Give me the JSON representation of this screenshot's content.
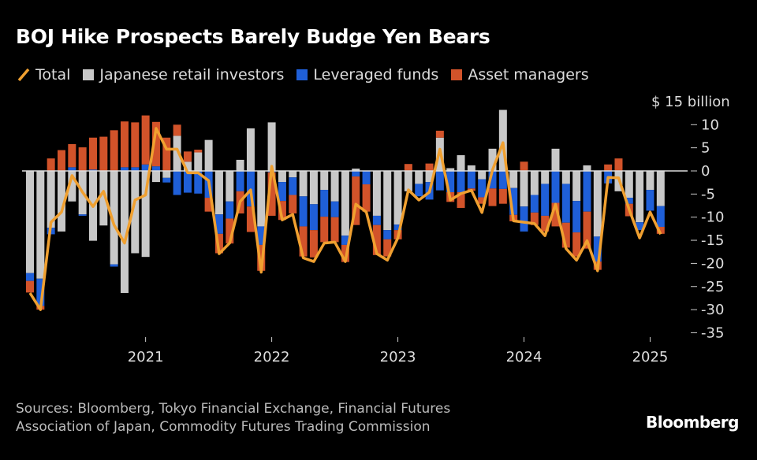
{
  "title": "BOJ Hike Prospects Barely Budge Yen Bears",
  "legend": [
    {
      "label": "Total",
      "color": "#f0a030",
      "icon": "line"
    },
    {
      "label": "Japanese retail investors",
      "color": "#c8c8c8",
      "icon": "square"
    },
    {
      "label": "Leveraged funds",
      "color": "#1f5fd8",
      "icon": "square"
    },
    {
      "label": "Asset managers",
      "color": "#d2532a",
      "icon": "square"
    }
  ],
  "unit_label": "$ 15 billion",
  "footer": {
    "line1": "Sources: Bloomberg, Tokyo Financial Exchange, Financial Futures",
    "line2": "Association of Japan, Commodity Futures Trading Commission"
  },
  "logo": "Bloomberg",
  "chart_data": {
    "type": "bar",
    "stacked": true,
    "title": "BOJ Hike Prospects Barely Budge Yen Bears",
    "ylabel": "$ billion",
    "ylim": [
      -35,
      15
    ],
    "yticks": [
      10,
      5,
      0,
      -5,
      -10,
      -15,
      -20,
      -25,
      -30,
      -35
    ],
    "ytick_labels": [
      "10",
      "5",
      "0",
      "-5",
      "-10",
      "-15",
      "-20",
      "-25",
      "-30",
      "-35"
    ],
    "xtick_labels": [
      "2021",
      "2022",
      "2023",
      "2024",
      "2025"
    ],
    "xtick_categories": [
      "2021-01",
      "2022-01",
      "2023-01",
      "2024-01",
      "2025-01"
    ],
    "legend_position": "top",
    "grid": false,
    "categories": [
      "2020-02",
      "2020-03",
      "2020-04",
      "2020-05",
      "2020-06",
      "2020-07",
      "2020-08",
      "2020-09",
      "2020-10",
      "2020-11",
      "2020-12",
      "2021-01",
      "2021-02",
      "2021-03",
      "2021-04",
      "2021-05",
      "2021-06",
      "2021-07",
      "2021-08",
      "2021-09",
      "2021-10",
      "2021-11",
      "2021-12",
      "2022-01",
      "2022-02",
      "2022-03",
      "2022-04",
      "2022-05",
      "2022-06",
      "2022-07",
      "2022-08",
      "2022-09",
      "2022-10",
      "2022-11",
      "2022-12",
      "2023-01",
      "2023-02",
      "2023-03",
      "2023-04",
      "2023-05",
      "2023-06",
      "2023-07",
      "2023-08",
      "2023-09",
      "2023-10",
      "2023-11",
      "2023-12",
      "2024-01",
      "2024-02",
      "2024-03",
      "2024-04",
      "2024-05",
      "2024-06",
      "2024-07",
      "2024-08",
      "2024-09",
      "2024-10",
      "2024-11",
      "2024-12",
      "2025-01",
      "2025-02"
    ],
    "series": [
      {
        "name": "Japanese retail investors",
        "type": "bar",
        "color": "#c8c8c8",
        "values": [
          -22.1,
          -23.3,
          -12.3,
          -13.1,
          -6.6,
          -9.4,
          -15.1,
          -11.8,
          -20.2,
          -26.4,
          -17.8,
          -18.6,
          -2.4,
          -1.5,
          7.6,
          2,
          4,
          6.7,
          -9.4,
          -6.6,
          2.4,
          9.2,
          -12,
          10.5,
          -2.4,
          -1.4,
          -5.5,
          -7.2,
          -4.1,
          -6.6,
          -14,
          0.5,
          0,
          -9.7,
          -12.8,
          -11.6,
          -4.4,
          -2.8,
          -2.4,
          7.2,
          0.6,
          3.4,
          1.2,
          -1.8,
          4.8,
          13.2,
          -3.7,
          -7.7,
          -5.2,
          -2.8,
          4.8,
          -2.8,
          -6.5,
          1.2,
          -14.2,
          0,
          -4.4,
          -5.8,
          -11.1,
          -4.1,
          -7.6
        ]
      },
      {
        "name": "Leveraged funds",
        "type": "bar",
        "color": "#1f5fd8",
        "values": [
          -1.7,
          -5.9,
          -1.4,
          0,
          0.8,
          -0.3,
          0.3,
          0,
          -0.5,
          0.8,
          0.8,
          1.4,
          1,
          -1,
          -5.2,
          -4.7,
          -4.9,
          -5.8,
          -4.2,
          -3.7,
          -4.4,
          -7.7,
          -4,
          -0.3,
          -4.1,
          -3.8,
          -6.5,
          -5.6,
          -5.8,
          -3.4,
          -2,
          -1.2,
          -2.9,
          -2,
          -2,
          -1.2,
          0,
          -2.7,
          -3.8,
          -4.2,
          -4.6,
          -4.6,
          -3.8,
          -3.9,
          -3.8,
          -3.9,
          -5.8,
          -5.4,
          -3.8,
          -6.9,
          -6.9,
          -8.4,
          -6.8,
          -8.8,
          -5.4,
          -2.7,
          0,
          -1.3,
          -1.7,
          -4.5,
          -4.5
        ]
      },
      {
        "name": "Asset managers",
        "type": "bar",
        "color": "#d2532a",
        "values": [
          -2.5,
          -0.8,
          2.7,
          4.5,
          5,
          5.1,
          6.9,
          7.4,
          8.8,
          9.9,
          9.7,
          10.6,
          9.6,
          7.2,
          2.4,
          2.2,
          0.6,
          -3,
          -4.2,
          -5.4,
          -4.8,
          -5.5,
          -5.6,
          -9.4,
          -4.1,
          -4,
          -6.5,
          -5.9,
          -5.5,
          -5.4,
          -3.7,
          -10.5,
          -5.9,
          -6.5,
          -3.7,
          -2,
          1.5,
          0,
          1.6,
          1.5,
          -2.1,
          -3.4,
          -0.5,
          -1.4,
          -3.8,
          -3.2,
          -1.4,
          2,
          -2.7,
          -3.4,
          -5.1,
          -5.4,
          -5.2,
          -8,
          -1.8,
          1.4,
          2.7,
          -2.7,
          0,
          0,
          -1.5
        ]
      },
      {
        "name": "Total",
        "type": "line",
        "color": "#f0a030",
        "values": [
          -26.4,
          -30,
          -11.1,
          -8.9,
          -1,
          -4.6,
          -7.7,
          -4.4,
          -11.7,
          -15.6,
          -6.3,
          -5.2,
          9.2,
          4.7,
          4.7,
          -0.4,
          -0.4,
          -2.1,
          -17.9,
          -15.6,
          -6.6,
          -4.1,
          -21.9,
          1,
          -10.6,
          -9.4,
          -18.8,
          -19.6,
          -15.6,
          -15.4,
          -19.6,
          -7.2,
          -8.9,
          -17.9,
          -19.3,
          -14.5,
          -4.1,
          -6.3,
          -4.6,
          4.7,
          -6.3,
          -4.9,
          -4.2,
          -9,
          0.2,
          6.1,
          -10.8,
          -11.1,
          -11.4,
          -14,
          -7.2,
          -16.8,
          -19.3,
          -15.1,
          -21.6,
          -1.4,
          -1.5,
          -8.3,
          -14.5,
          -8.9,
          -13.7
        ]
      }
    ]
  }
}
